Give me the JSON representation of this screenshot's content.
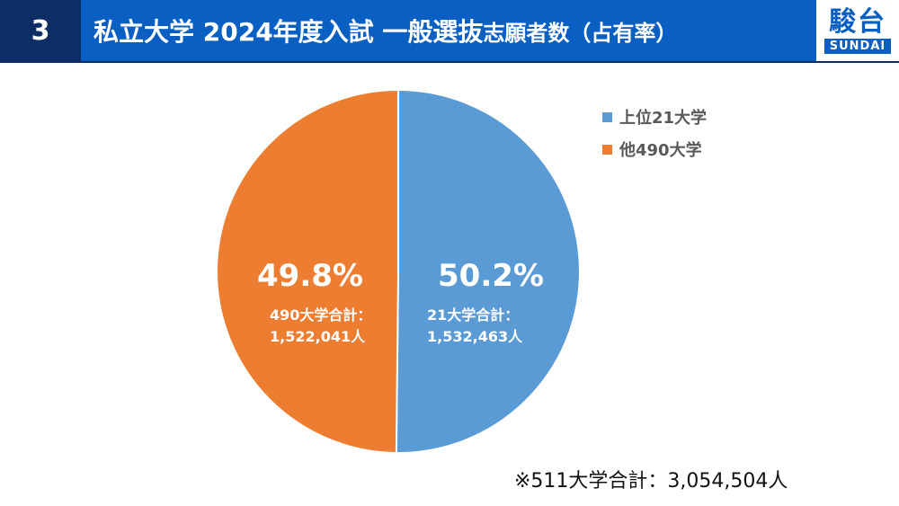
{
  "header": {
    "number": "3",
    "title_main": "私立大学 2024年度入試 一般選抜",
    "title_small": "志願者数（占有率）",
    "logo_kanji": "駿台",
    "logo_latin": "SUNDAI",
    "colors": {
      "dark": "#0d2d66",
      "blue": "#0a5fc2"
    }
  },
  "chart_data": {
    "type": "pie",
    "slices": [
      {
        "name": "上位21大学",
        "value": 1532463,
        "percent_label": "50.2%",
        "detail_line1": "21大学合計：",
        "detail_line2": "1,532,463人",
        "color": "#5b9bd5"
      },
      {
        "name": "他490大学",
        "value": 1522041,
        "percent_label": "49.8%",
        "detail_line1": "490大学合計：",
        "detail_line2": "1,522,041人",
        "color": "#ed7d31"
      }
    ],
    "legend_position": "top-right"
  },
  "footnote": "※511大学合計：3,054,504人"
}
